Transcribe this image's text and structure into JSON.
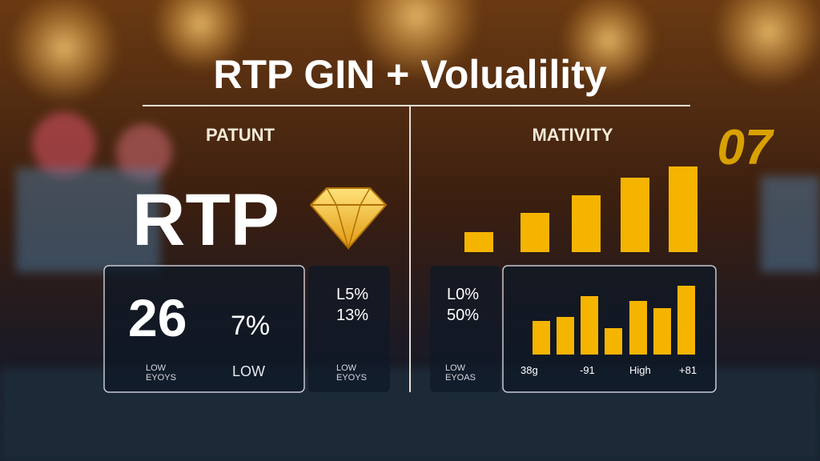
{
  "header": {
    "title": "RTP GIN + Volualility"
  },
  "background": {
    "sign": "07"
  },
  "left": {
    "heading": "PATUNT",
    "big_label": "RTP",
    "panel_main": {
      "value": "26",
      "percent": "7%",
      "caption_line1": "LOW",
      "caption_line2": "EYOYS",
      "level": "LOW"
    },
    "panel_side": {
      "line1": "L5%",
      "line2": "13%",
      "caption_line1": "LOW",
      "caption_line2": "EYOYS"
    }
  },
  "right": {
    "heading": "MATIVITY",
    "panel_side": {
      "line1": "L0%",
      "line2": "50%",
      "caption_line1": "LOW",
      "caption_line2": "EYOAS"
    },
    "panel_chart": {
      "labels": [
        "38g",
        "-91",
        "High",
        "+81"
      ]
    }
  }
}
